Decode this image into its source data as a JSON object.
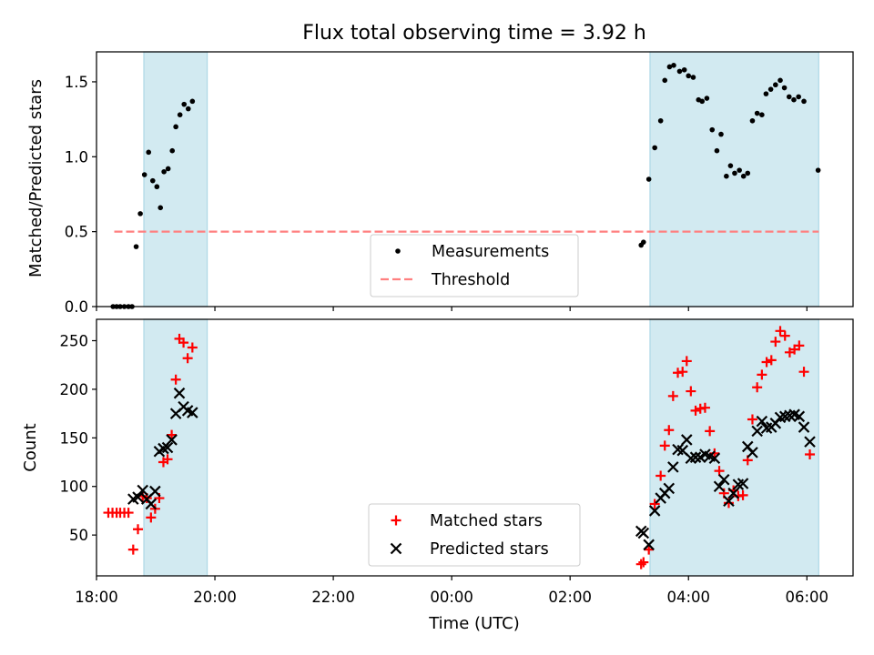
{
  "chart_data": {
    "type": "scatter",
    "title": "Flux total observing time = 3.92 h",
    "xlabel": "Time (UTC)",
    "x_unit": "hours since 00:00 UTC (negative = previous day)",
    "xlim": [
      -6.0,
      6.78
    ],
    "x_ticks": [
      {
        "value": -6,
        "label": "18:00"
      },
      {
        "value": -4,
        "label": "20:00"
      },
      {
        "value": -2,
        "label": "22:00"
      },
      {
        "value": 0,
        "label": "00:00"
      },
      {
        "value": 2,
        "label": "02:00"
      },
      {
        "value": 4,
        "label": "04:00"
      },
      {
        "value": 6,
        "label": "06:00"
      }
    ],
    "colors": {
      "measurements": "#000000",
      "threshold": "#ff7f7f",
      "matched": "#ff0000",
      "predicted": "#000000",
      "observing_band": "#add8e6"
    },
    "observing_intervals": [
      [
        -5.2,
        -4.13
      ],
      [
        3.35,
        6.2
      ]
    ],
    "panels": [
      {
        "id": "ratio",
        "ylabel": "Matched/Predicted stars",
        "ylim": [
          0,
          1.7
        ],
        "y_ticks": [
          {
            "value": 0,
            "label": "0.0"
          },
          {
            "value": 0.5,
            "label": "0.5"
          },
          {
            "value": 1.0,
            "label": "1.0"
          },
          {
            "value": 1.5,
            "label": "1.5"
          }
        ],
        "legend": {
          "position": "lower-center",
          "entries": [
            {
              "key": "measurements",
              "label": "Measurements",
              "marker": "dot"
            },
            {
              "key": "threshold",
              "label": "Threshold",
              "marker": "dashed-line"
            }
          ]
        },
        "threshold": {
          "value": 0.5,
          "x_range": [
            -5.7,
            6.2
          ]
        },
        "series": [
          {
            "name": "Measurements",
            "marker": "dot",
            "color_key": "measurements",
            "points": [
              [
                -5.72,
                0
              ],
              [
                -5.66,
                0
              ],
              [
                -5.6,
                0
              ],
              [
                -5.53,
                0
              ],
              [
                -5.46,
                0
              ],
              [
                -5.4,
                0
              ],
              [
                -5.33,
                0.4
              ],
              [
                -5.26,
                0.62
              ],
              [
                -5.19,
                0.88
              ],
              [
                -5.12,
                1.03
              ],
              [
                -5.05,
                0.84
              ],
              [
                -4.98,
                0.8
              ],
              [
                -4.92,
                0.66
              ],
              [
                -4.86,
                0.9
              ],
              [
                -4.79,
                0.92
              ],
              [
                -4.72,
                1.04
              ],
              [
                -4.66,
                1.2
              ],
              [
                -4.59,
                1.28
              ],
              [
                -4.52,
                1.35
              ],
              [
                -4.45,
                1.32
              ],
              [
                -4.38,
                1.37
              ],
              [
                3.2,
                0.41
              ],
              [
                3.24,
                0.43
              ],
              [
                3.33,
                0.85
              ],
              [
                3.43,
                1.06
              ],
              [
                3.53,
                1.24
              ],
              [
                3.6,
                1.51
              ],
              [
                3.68,
                1.6
              ],
              [
                3.75,
                1.61
              ],
              [
                3.85,
                1.57
              ],
              [
                3.93,
                1.58
              ],
              [
                4.0,
                1.54
              ],
              [
                4.08,
                1.53
              ],
              [
                4.17,
                1.38
              ],
              [
                4.23,
                1.37
              ],
              [
                4.31,
                1.39
              ],
              [
                4.4,
                1.18
              ],
              [
                4.48,
                1.04
              ],
              [
                4.55,
                1.15
              ],
              [
                4.64,
                0.87
              ],
              [
                4.71,
                0.94
              ],
              [
                4.78,
                0.89
              ],
              [
                4.86,
                0.91
              ],
              [
                4.93,
                0.87
              ],
              [
                5.0,
                0.89
              ],
              [
                5.08,
                1.24
              ],
              [
                5.16,
                1.29
              ],
              [
                5.24,
                1.28
              ],
              [
                5.31,
                1.42
              ],
              [
                5.39,
                1.45
              ],
              [
                5.47,
                1.48
              ],
              [
                5.55,
                1.51
              ],
              [
                5.62,
                1.46
              ],
              [
                5.7,
                1.4
              ],
              [
                5.78,
                1.38
              ],
              [
                5.86,
                1.4
              ],
              [
                5.95,
                1.37
              ],
              [
                6.19,
                0.91
              ]
            ]
          }
        ]
      },
      {
        "id": "counts",
        "ylabel": "Count",
        "ylim": [
          8,
          272
        ],
        "y_ticks": [
          {
            "value": 50,
            "label": "50"
          },
          {
            "value": 100,
            "label": "100"
          },
          {
            "value": 150,
            "label": "150"
          },
          {
            "value": 200,
            "label": "200"
          },
          {
            "value": 250,
            "label": "250"
          }
        ],
        "legend": {
          "position": "lower-center",
          "entries": [
            {
              "key": "matched",
              "label": "Matched stars",
              "marker": "plus"
            },
            {
              "key": "predicted",
              "label": "Predicted stars",
              "marker": "x"
            }
          ]
        },
        "series": [
          {
            "name": "Matched stars",
            "marker": "plus",
            "color_key": "matched",
            "points": [
              [
                -5.8,
                73
              ],
              [
                -5.73,
                73
              ],
              [
                -5.66,
                73
              ],
              [
                -5.6,
                73
              ],
              [
                -5.53,
                73
              ],
              [
                -5.46,
                73
              ],
              [
                -5.38,
                35
              ],
              [
                -5.3,
                56
              ],
              [
                -5.22,
                90
              ],
              [
                -5.15,
                88
              ],
              [
                -5.08,
                68
              ],
              [
                -5.01,
                77
              ],
              [
                -4.94,
                88
              ],
              [
                -4.87,
                125
              ],
              [
                -4.8,
                128
              ],
              [
                -4.73,
                153
              ],
              [
                -4.66,
                210
              ],
              [
                -4.6,
                252
              ],
              [
                -4.53,
                248
              ],
              [
                -4.46,
                232
              ],
              [
                -4.38,
                243
              ],
              [
                3.2,
                20
              ],
              [
                3.24,
                22
              ],
              [
                3.33,
                35
              ],
              [
                3.43,
                82
              ],
              [
                3.53,
                111
              ],
              [
                3.6,
                142
              ],
              [
                3.67,
                158
              ],
              [
                3.74,
                193
              ],
              [
                3.82,
                217
              ],
              [
                3.9,
                218
              ],
              [
                3.97,
                229
              ],
              [
                4.04,
                198
              ],
              [
                4.12,
                178
              ],
              [
                4.2,
                180
              ],
              [
                4.28,
                181
              ],
              [
                4.36,
                157
              ],
              [
                4.44,
                134
              ],
              [
                4.52,
                116
              ],
              [
                4.6,
                93
              ],
              [
                4.68,
                83
              ],
              [
                4.76,
                96
              ],
              [
                4.84,
                90
              ],
              [
                4.92,
                91
              ],
              [
                5.0,
                127
              ],
              [
                5.08,
                169
              ],
              [
                5.16,
                202
              ],
              [
                5.24,
                215
              ],
              [
                5.32,
                228
              ],
              [
                5.4,
                230
              ],
              [
                5.47,
                249
              ],
              [
                5.55,
                260
              ],
              [
                5.63,
                255
              ],
              [
                5.71,
                238
              ],
              [
                5.79,
                241
              ],
              [
                5.87,
                245
              ],
              [
                5.95,
                218
              ],
              [
                6.05,
                133
              ]
            ]
          },
          {
            "name": "Predicted stars",
            "marker": "x",
            "color_key": "predicted",
            "points": [
              [
                -5.38,
                87
              ],
              [
                -5.3,
                89
              ],
              [
                -5.22,
                96
              ],
              [
                -5.15,
                87
              ],
              [
                -5.08,
                82
              ],
              [
                -5.01,
                95
              ],
              [
                -4.94,
                136
              ],
              [
                -4.87,
                139
              ],
              [
                -4.8,
                140
              ],
              [
                -4.73,
                148
              ],
              [
                -4.66,
                175
              ],
              [
                -4.6,
                196
              ],
              [
                -4.53,
                182
              ],
              [
                -4.46,
                178
              ],
              [
                -4.38,
                176
              ],
              [
                3.2,
                54
              ],
              [
                3.24,
                52
              ],
              [
                3.33,
                40
              ],
              [
                3.43,
                75
              ],
              [
                3.53,
                88
              ],
              [
                3.6,
                93
              ],
              [
                3.67,
                98
              ],
              [
                3.74,
                120
              ],
              [
                3.82,
                138
              ],
              [
                3.9,
                137
              ],
              [
                3.97,
                148
              ],
              [
                4.04,
                129
              ],
              [
                4.12,
                130
              ],
              [
                4.2,
                130
              ],
              [
                4.28,
                133
              ],
              [
                4.36,
                131
              ],
              [
                4.44,
                129
              ],
              [
                4.52,
                100
              ],
              [
                4.6,
                107
              ],
              [
                4.68,
                85
              ],
              [
                4.76,
                93
              ],
              [
                4.84,
                102
              ],
              [
                4.92,
                103
              ],
              [
                5.0,
                141
              ],
              [
                5.08,
                135
              ],
              [
                5.16,
                157
              ],
              [
                5.24,
                167
              ],
              [
                5.32,
                160
              ],
              [
                5.4,
                161
              ],
              [
                5.47,
                165
              ],
              [
                5.55,
                171
              ],
              [
                5.63,
                172
              ],
              [
                5.71,
                173
              ],
              [
                5.79,
                174
              ],
              [
                5.87,
                172
              ],
              [
                5.95,
                161
              ],
              [
                6.05,
                146
              ]
            ]
          }
        ]
      }
    ]
  }
}
